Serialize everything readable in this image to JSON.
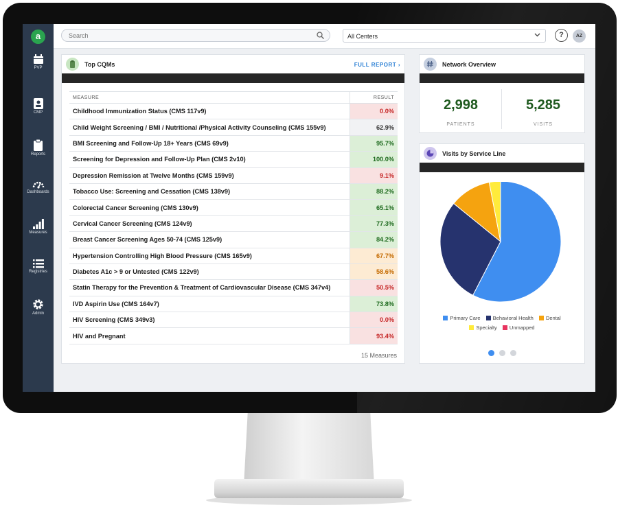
{
  "app": {
    "logo_letter": "a"
  },
  "sidebar": {
    "items": [
      {
        "label": "PVP",
        "icon": "calendar-icon"
      },
      {
        "label": "CMP",
        "icon": "person-card-icon"
      },
      {
        "label": "Reports",
        "icon": "clipboard-icon"
      },
      {
        "label": "Dashboards",
        "icon": "gauge-icon"
      },
      {
        "label": "Measures",
        "icon": "bar-chart-icon"
      },
      {
        "label": "Registries",
        "icon": "list-icon"
      },
      {
        "label": "Admin",
        "icon": "gear-icon"
      }
    ]
  },
  "topbar": {
    "search_placeholder": "Search",
    "center_select": "All Centers",
    "help": "?",
    "avatar_initials": "AZ"
  },
  "top_cqms": {
    "title": "Top CQMs",
    "full_report": "FULL REPORT ›",
    "col_measure": "MEASURE",
    "col_result": "RESULT",
    "rows": [
      {
        "measure": "Childhood Immunization Status (CMS 117v9)",
        "result": "0.0%",
        "status": "red"
      },
      {
        "measure": "Child Weight Screening / BMI / Nutritional /Physical Activity Counseling (CMS 155v9)",
        "result": "62.9%",
        "status": "gray"
      },
      {
        "measure": "BMI Screening and Follow-Up 18+ Years (CMS 69v9)",
        "result": "95.7%",
        "status": "green"
      },
      {
        "measure": "Screening for Depression and Follow-Up Plan (CMS 2v10)",
        "result": "100.0%",
        "status": "green"
      },
      {
        "measure": "Depression Remission at Twelve Months (CMS 159v9)",
        "result": "9.1%",
        "status": "red"
      },
      {
        "measure": "Tobacco Use: Screening and Cessation (CMS 138v9)",
        "result": "88.2%",
        "status": "green"
      },
      {
        "measure": "Colorectal Cancer Screening (CMS 130v9)",
        "result": "65.1%",
        "status": "green"
      },
      {
        "measure": "Cervical Cancer Screening (CMS 124v9)",
        "result": "77.3%",
        "status": "green"
      },
      {
        "measure": "Breast Cancer Screening Ages 50-74 (CMS 125v9)",
        "result": "84.2%",
        "status": "green"
      },
      {
        "measure": "Hypertension Controlling High Blood Pressure (CMS 165v9)",
        "result": "67.7%",
        "status": "orange"
      },
      {
        "measure": "Diabetes A1c > 9 or Untested (CMS 122v9)",
        "result": "58.6%",
        "status": "orange"
      },
      {
        "measure": "Statin Therapy for the Prevention & Treatment of Cardiovascular Disease (CMS 347v4)",
        "result": "50.5%",
        "status": "red"
      },
      {
        "measure": "IVD Aspirin Use (CMS 164v7)",
        "result": "73.8%",
        "status": "green"
      },
      {
        "measure": "HIV Screening (CMS 349v3)",
        "result": "0.0%",
        "status": "red"
      },
      {
        "measure": "HIV and Pregnant",
        "result": "93.4%",
        "status": "red"
      }
    ],
    "footer": "15 Measures"
  },
  "status_colors": {
    "green": {
      "bg": "#dcefd7",
      "fg": "#1f6b1f"
    },
    "red": {
      "bg": "#f9e1e1",
      "fg": "#c62828"
    },
    "orange": {
      "bg": "#fdebd3",
      "fg": "#c46a00"
    },
    "gray": {
      "bg": "#f1f2f4",
      "fg": "#333333"
    }
  },
  "network_overview": {
    "title": "Network Overview",
    "patients_value": "2,998",
    "patients_label": "PATIENTS",
    "visits_value": "5,285",
    "visits_label": "VISITS"
  },
  "visits_by_service_line": {
    "title": "Visits by Service Line"
  },
  "chart_data": {
    "type": "pie",
    "series": [
      {
        "name": "Primary Care",
        "value": 57,
        "color": "#3f8ef0"
      },
      {
        "name": "Behavioral Health",
        "value": 28,
        "color": "#26336e"
      },
      {
        "name": "Dental",
        "value": 11,
        "color": "#f5a30f"
      },
      {
        "name": "Specialty",
        "value": 3,
        "color": "#ffeb3b"
      },
      {
        "name": "Unmapped",
        "value": 0,
        "color": "#e8345f"
      }
    ],
    "legend_position": "bottom"
  },
  "carousel": {
    "count": 3,
    "active": 0
  }
}
